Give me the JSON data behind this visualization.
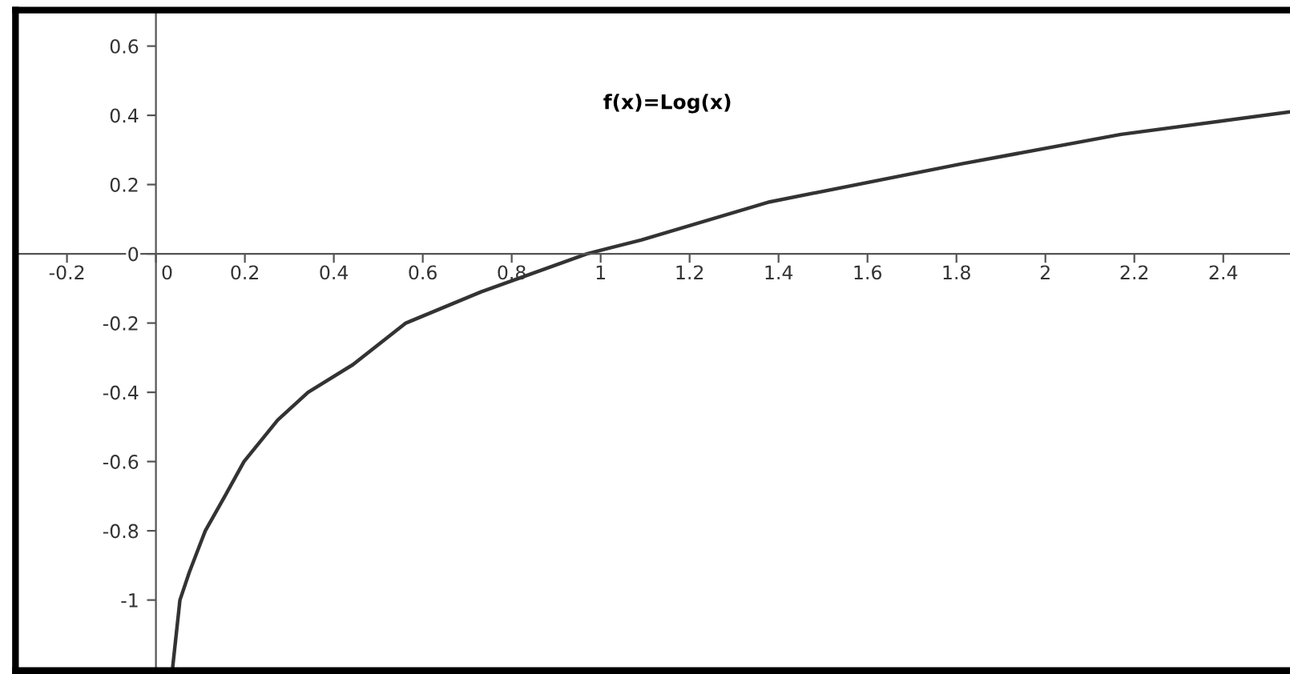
{
  "chart_data": {
    "type": "line",
    "series": [
      {
        "name": "f(x)=Log(x)",
        "color": "#333333",
        "x": [
          0.038,
          0.054,
          0.075,
          0.111,
          0.155,
          0.198,
          0.274,
          0.342,
          0.443,
          0.562,
          0.731,
          0.85,
          0.969,
          1.091,
          1.38,
          1.812,
          2.17,
          2.55
        ],
        "values": [
          -1.19,
          -1.0,
          -0.92,
          -0.8,
          -0.7,
          -0.6,
          -0.48,
          -0.4,
          -0.32,
          -0.2,
          -0.11,
          -0.055,
          0.0,
          0.04,
          0.15,
          0.26,
          0.345,
          0.41
        ]
      }
    ],
    "xlim": [
      -0.31,
      2.55
    ],
    "ylim": [
      -1.2,
      0.7
    ],
    "xticks": [
      -0.2,
      0,
      0.2,
      0.4,
      0.6,
      0.8,
      1,
      1.2,
      1.4,
      1.6,
      1.8,
      2,
      2.2,
      2.4
    ],
    "yticks": [
      {
        "value": -1.2,
        "label": null
      },
      -1,
      -0.8,
      -0.6,
      -0.4,
      -0.2,
      0,
      0.2,
      0.4,
      0.6
    ],
    "grid": false,
    "legend": false,
    "line_style": "solid",
    "marker": "none"
  }
}
